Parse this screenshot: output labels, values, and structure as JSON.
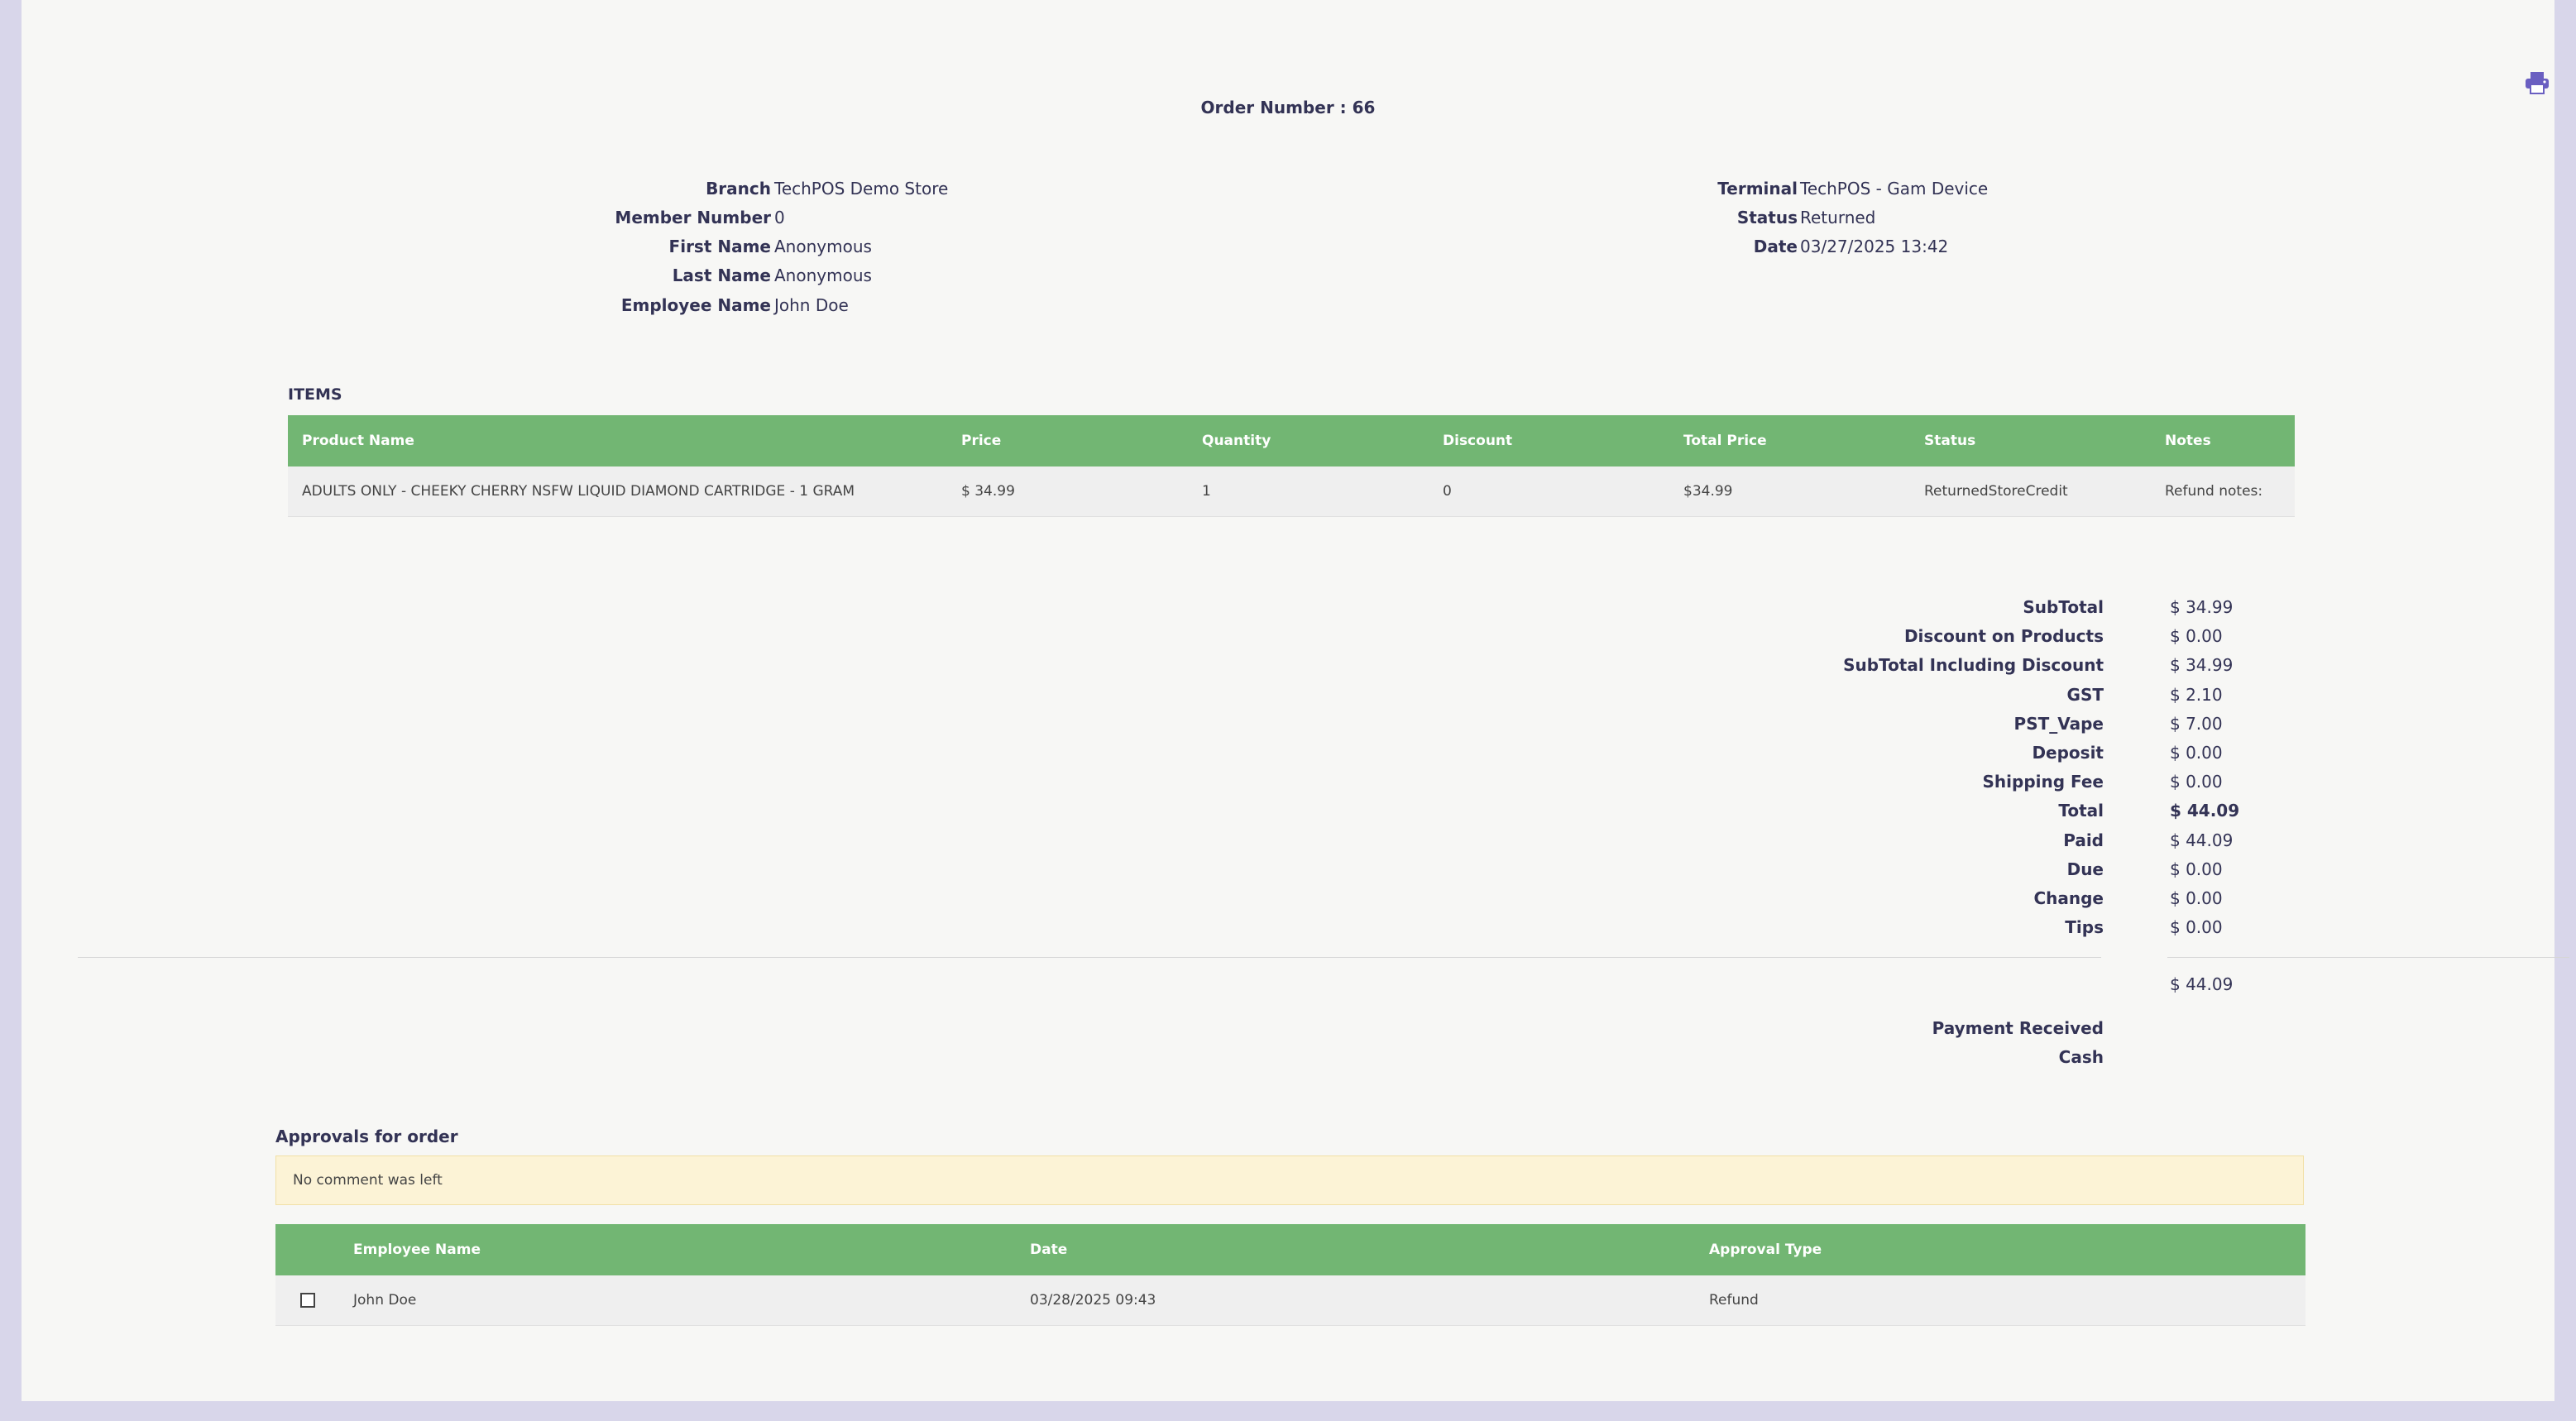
{
  "header": {
    "order_label": "Order Number : 66",
    "print_icon": "printer-icon"
  },
  "order_info": {
    "left": [
      {
        "label": "Branch",
        "value": "TechPOS Demo Store"
      },
      {
        "label": "Member Number",
        "value": "0"
      },
      {
        "label": "First Name",
        "value": "Anonymous"
      },
      {
        "label": "Last Name",
        "value": "Anonymous"
      },
      {
        "label": "Employee Name",
        "value": "John Doe"
      }
    ],
    "right": [
      {
        "label": "Terminal",
        "value": "TechPOS - Gam Device"
      },
      {
        "label": "Status",
        "value": "Returned"
      },
      {
        "label": "Date",
        "value": "03/27/2025 13:42"
      }
    ]
  },
  "items": {
    "title": "ITEMS",
    "columns": [
      "Product Name",
      "Price",
      "Quantity",
      "Discount",
      "Total Price",
      "Status",
      "Notes"
    ],
    "rows": [
      [
        "ADULTS ONLY - CHEEKY CHERRY NSFW LIQUID DIAMOND CARTRIDGE - 1 GRAM",
        "$ 34.99",
        "1",
        "0",
        "$34.99",
        "ReturnedStoreCredit",
        "Refund notes:"
      ]
    ]
  },
  "summary": {
    "lines": [
      {
        "label": "SubTotal",
        "value": "$ 34.99"
      },
      {
        "label": "Discount on Products",
        "value": "$ 0.00"
      },
      {
        "label": "SubTotal Including Discount",
        "value": "$ 34.99"
      },
      {
        "label": "GST",
        "value": "$ 2.10"
      },
      {
        "label": "PST_Vape",
        "value": "$ 7.00"
      },
      {
        "label": "Deposit",
        "value": "$ 0.00"
      },
      {
        "label": "Shipping Fee",
        "value": "$ 0.00"
      },
      {
        "label": "Total",
        "value": "$ 44.09"
      },
      {
        "label": "Paid",
        "value": "$ 44.09"
      },
      {
        "label": "Due",
        "value": "$ 0.00"
      },
      {
        "label": "Change",
        "value": "$ 0.00"
      },
      {
        "label": "Tips",
        "value": "$ 0.00"
      }
    ],
    "payment_total": "$ 44.09",
    "payment_received_label": "Payment Received",
    "payment_method": "Cash"
  },
  "approvals": {
    "title": "Approvals for order",
    "comment": "No comment was left",
    "columns": [
      "",
      "Employee Name",
      "Date",
      "Approval Type"
    ],
    "rows": [
      {
        "employee": "John Doe",
        "date": "03/28/2025 09:43",
        "type": "Refund"
      }
    ]
  },
  "colors": {
    "table_header": "#72b673",
    "page_bg": "#f7f7f5",
    "frame": "#d8d6ea",
    "comment_bg": "#fcf3d6",
    "print_icon": "#6a5fc1"
  }
}
